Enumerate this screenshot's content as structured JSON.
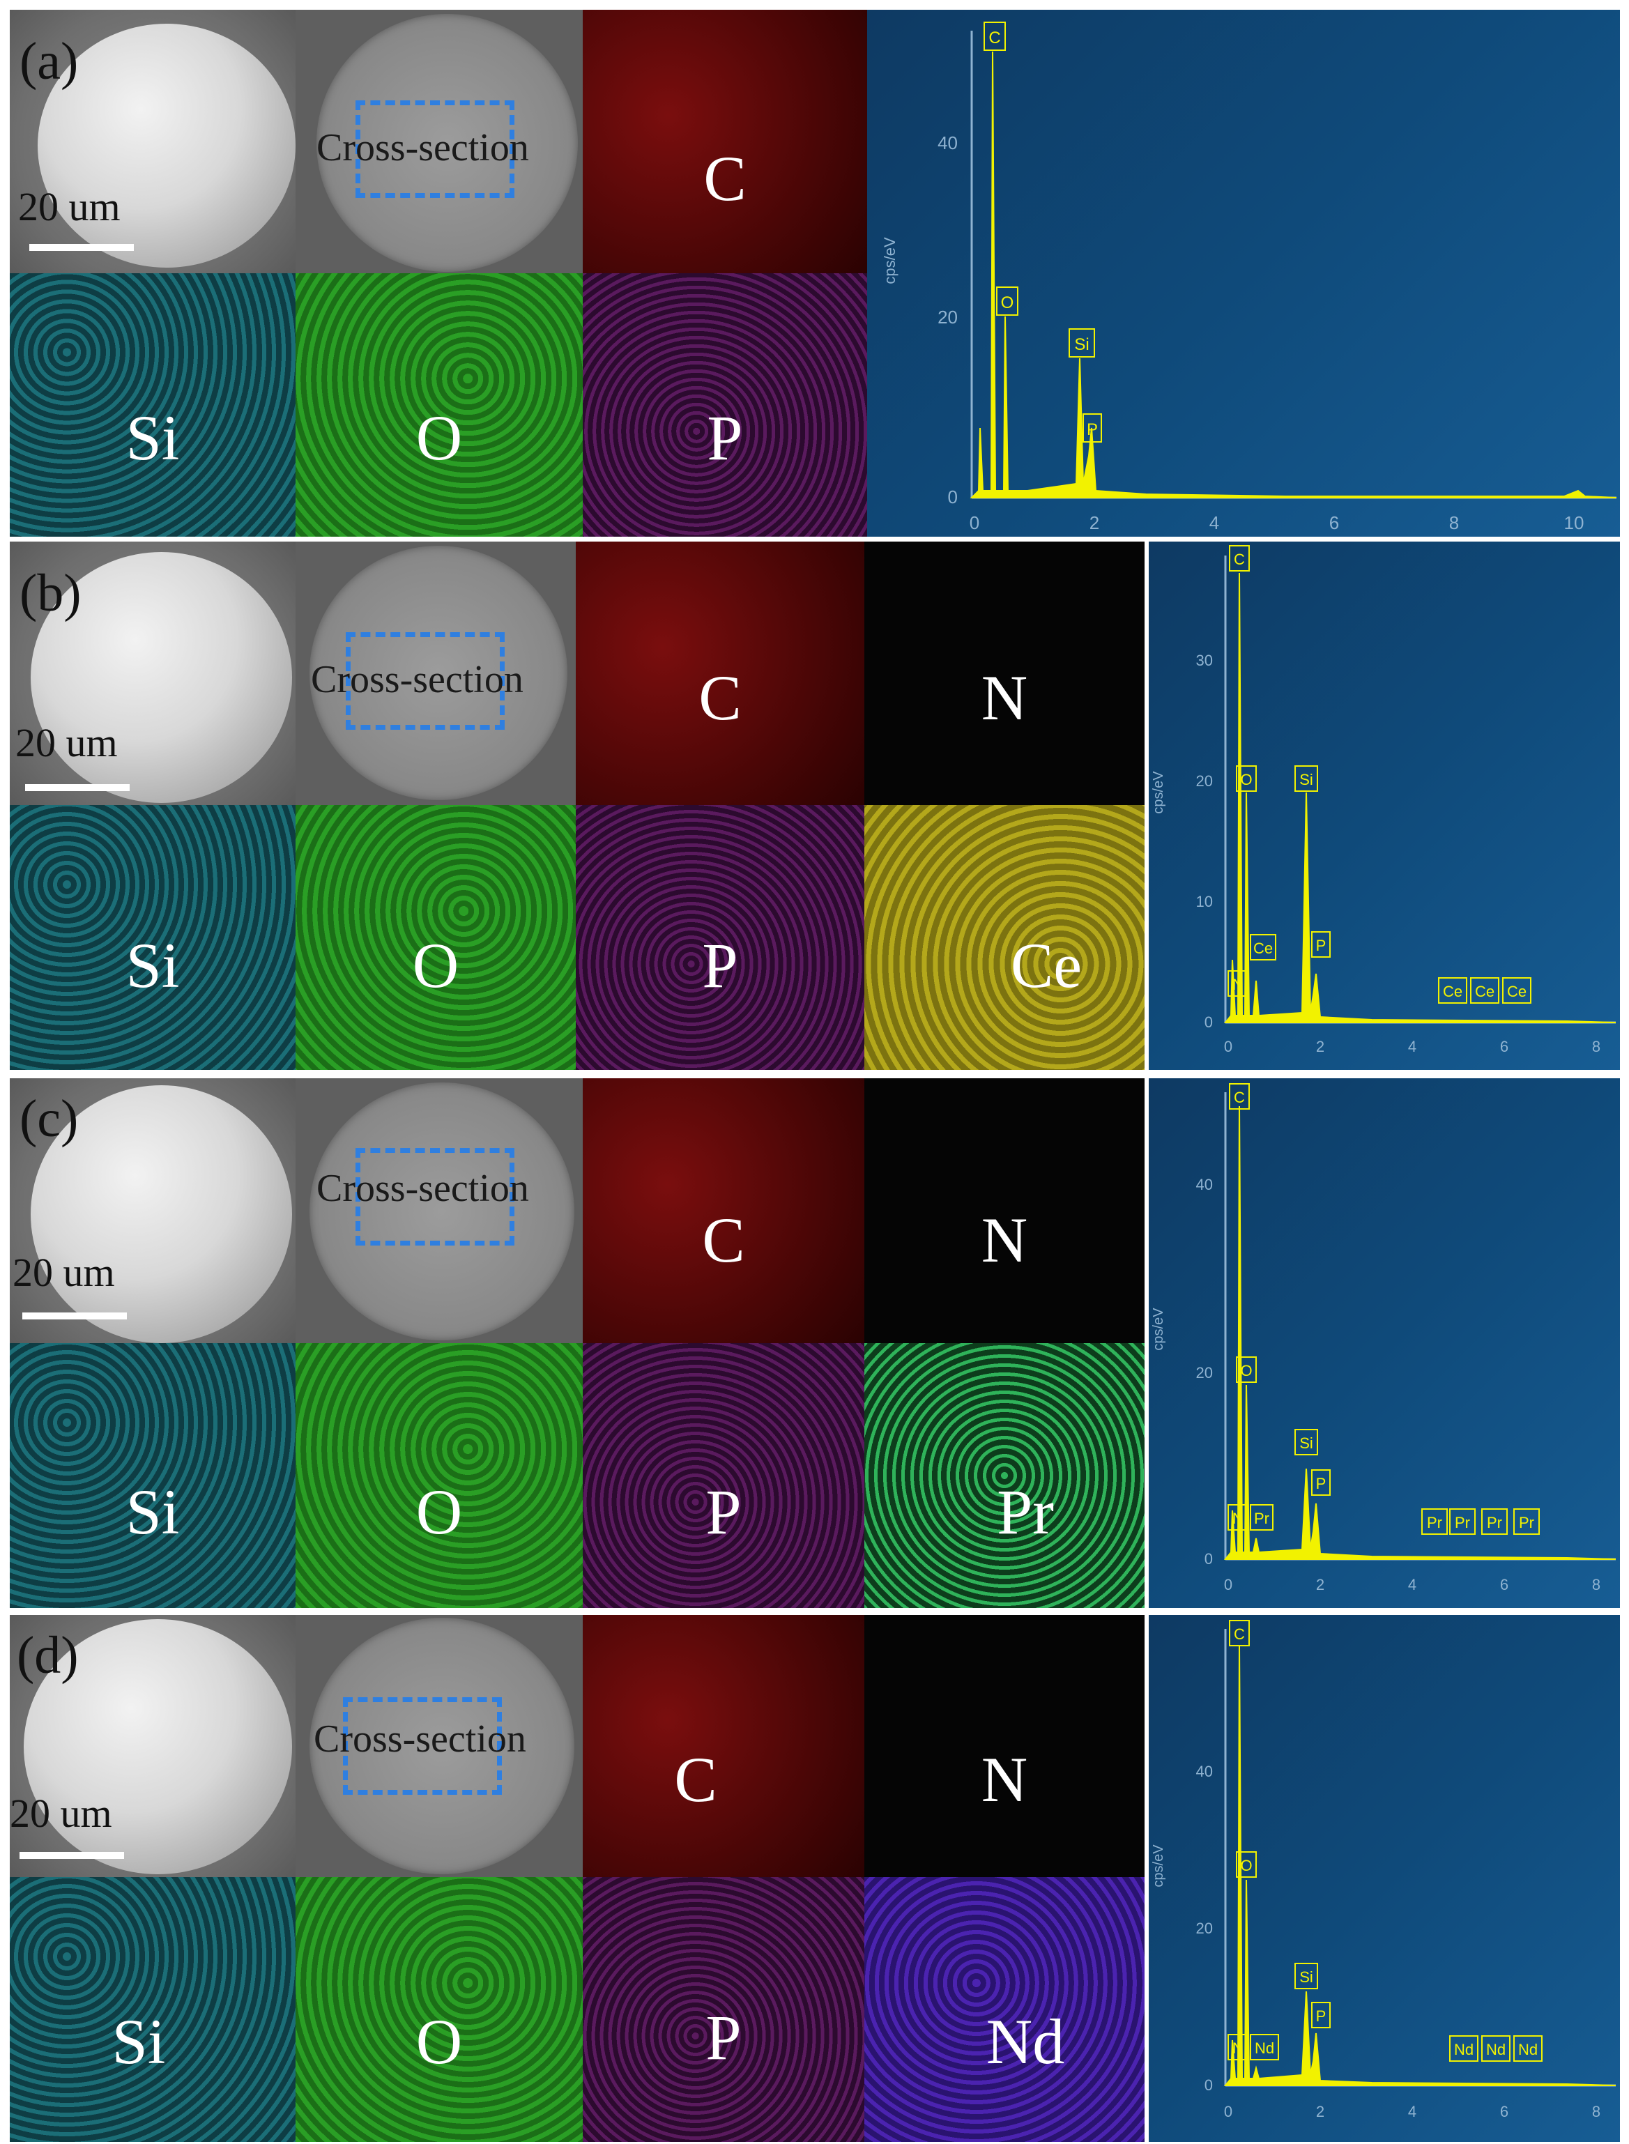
{
  "panels": [
    {
      "label": "(a)",
      "cross_section": "Cross-section",
      "scale": "20 um",
      "maps": [
        "C",
        "Si",
        "O",
        "P"
      ],
      "spectrum": {
        "ylabel": "cps/eV",
        "yticks": [
          "0",
          "20",
          "40"
        ],
        "xticks": [
          "0",
          "2",
          "4",
          "6",
          "8",
          "10"
        ],
        "peaks": [
          "C",
          "O",
          "Si",
          "P"
        ]
      }
    },
    {
      "label": "(b)",
      "cross_section": "Cross-section",
      "scale": "20 um",
      "maps": [
        "C",
        "N",
        "Si",
        "O",
        "P",
        "Ce"
      ],
      "spectrum": {
        "ylabel": "cps/eV",
        "yticks": [
          "0",
          "10",
          "20",
          "30"
        ],
        "xticks": [
          "0",
          "2",
          "4",
          "6",
          "8"
        ],
        "peaks": [
          "C",
          "O",
          "Si",
          "N",
          "Ce",
          "P",
          "Ce",
          "Ce",
          "Ce"
        ]
      }
    },
    {
      "label": "(c)",
      "cross_section": "Cross-section",
      "scale": "20 um",
      "maps": [
        "C",
        "N",
        "Si",
        "O",
        "P",
        "Pr"
      ],
      "spectrum": {
        "ylabel": "cps/eV",
        "yticks": [
          "0",
          "20",
          "40"
        ],
        "xticks": [
          "0",
          "2",
          "4",
          "6",
          "8"
        ],
        "peaks": [
          "C",
          "O",
          "Si",
          "N",
          "Pr",
          "P",
          "Pr",
          "Pr",
          "Pr",
          "Pr"
        ]
      }
    },
    {
      "label": "(d)",
      "cross_section": "Cross-section",
      "scale": "20 um",
      "maps": [
        "C",
        "N",
        "Si",
        "O",
        "P",
        "Nd"
      ],
      "spectrum": {
        "ylabel": "cps/eV",
        "yticks": [
          "0",
          "20",
          "40"
        ],
        "xticks": [
          "0",
          "2",
          "4",
          "6",
          "8"
        ],
        "peaks": [
          "C",
          "O",
          "Si",
          "N",
          "Nd",
          "P",
          "Nd",
          "Nd",
          "Nd"
        ]
      }
    }
  ],
  "colors": {
    "peak": "#f2f200",
    "spectrum_bg": "#0f4a7a",
    "dash_box": "#2f7fe0"
  }
}
